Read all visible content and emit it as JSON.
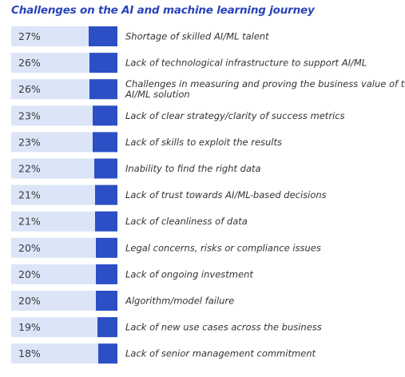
{
  "chart_data": {
    "type": "bar",
    "orientation": "horizontal",
    "title": "Challenges on the AI and machine learning journey",
    "value_suffix": "%",
    "max_value": 100,
    "colors": {
      "track": "#dbe5f7",
      "bar": "#2c4fc6",
      "title": "#2b44b8"
    },
    "rows": [
      {
        "value": 27,
        "label": "Shortage of skilled AI/ML talent"
      },
      {
        "value": 26,
        "label": "Lack of technological infrastructure to support AI/ML"
      },
      {
        "value": 26,
        "label": [
          "Challenges in measuring and proving the business value of the",
          "AI/ML solution"
        ]
      },
      {
        "value": 23,
        "label": "Lack of clear strategy/clarity of success metrics"
      },
      {
        "value": 23,
        "label": "Lack of skills to exploit the results"
      },
      {
        "value": 22,
        "label": "Inability to find the right data"
      },
      {
        "value": 21,
        "label": "Lack of trust towards AI/ML-based decisions"
      },
      {
        "value": 21,
        "label": "Lack of cleanliness of data"
      },
      {
        "value": 20,
        "label": "Legal concerns, risks or compliance issues"
      },
      {
        "value": 20,
        "label": "Lack of ongoing investment"
      },
      {
        "value": 20,
        "label": "Algorithm/model failure"
      },
      {
        "value": 19,
        "label": "Lack of new use cases across the business"
      },
      {
        "value": 18,
        "label": "Lack of senior management commitment"
      }
    ]
  }
}
